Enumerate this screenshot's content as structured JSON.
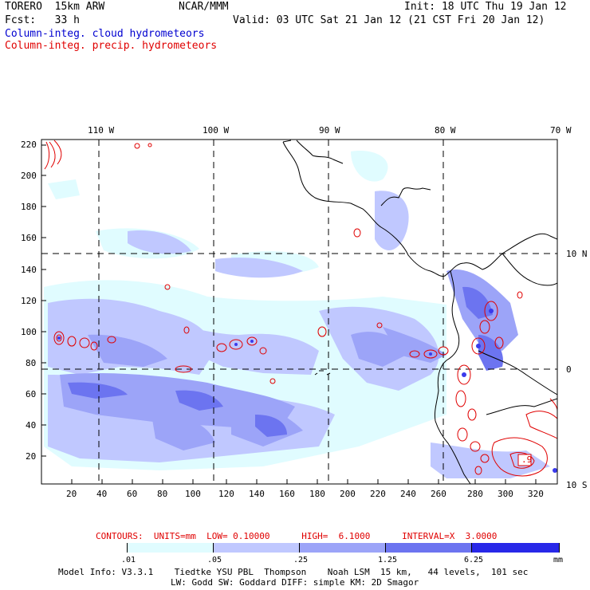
{
  "header": {
    "model": "TORERO  15km ARW",
    "center": "NCAR/MMM",
    "init": "Init: 18 UTC Thu 19 Jan 12",
    "fcst": "Fcst:   33 h",
    "valid": "Valid: 03 UTC Sat 21 Jan 12 (21 CST Fri 20 Jan 12)",
    "legend_cloud": "Column-integ. cloud hydrometeors",
    "legend_precip": "Column-integ. precip. hydrometeors"
  },
  "colors": {
    "cloud_text": "#0000d0",
    "precip_text": "#e00000",
    "shade_1": "#e0fcff",
    "shade_2": "#c0c8ff",
    "shade_3": "#9ca4f8",
    "shade_4": "#6c74f0",
    "shade_5": "#3a3aec",
    "shade_6": "#1010e0",
    "contour": "#e00000",
    "coast": "#000000"
  },
  "map": {
    "top_lon_labels": [
      "110 W",
      "100 W",
      "90 W",
      "80 W",
      "70 W"
    ],
    "right_lat_labels": [
      "10 N",
      "0",
      "10 S"
    ],
    "y_ticks": [
      "220",
      "200",
      "180",
      "160",
      "140",
      "120",
      "100",
      "80",
      "60",
      "40",
      "20"
    ],
    "x_ticks": [
      "20",
      "40",
      "60",
      "80",
      "100",
      "120",
      "140",
      "160",
      "180",
      "200",
      "220",
      "240",
      "260",
      "280",
      "300",
      "320"
    ],
    "inset_label": ".9"
  },
  "footer": {
    "contours": "CONTOURS:  UNITS=mm  LOW= 0.10000      HIGH=  6.1000      INTERVAL=X  3.0000",
    "colorbar_labels": [
      ".01",
      ".05",
      ".25",
      "1.25",
      "6.25",
      "mm"
    ],
    "model_info_1": "Model Info: V3.3.1    Tiedtke YSU PBL  Thompson    Noah LSM  15 km,   44 levels,  101 sec",
    "model_info_2": "LW: Godd SW: Goddard DIFF: simple KM: 2D Smagor"
  }
}
